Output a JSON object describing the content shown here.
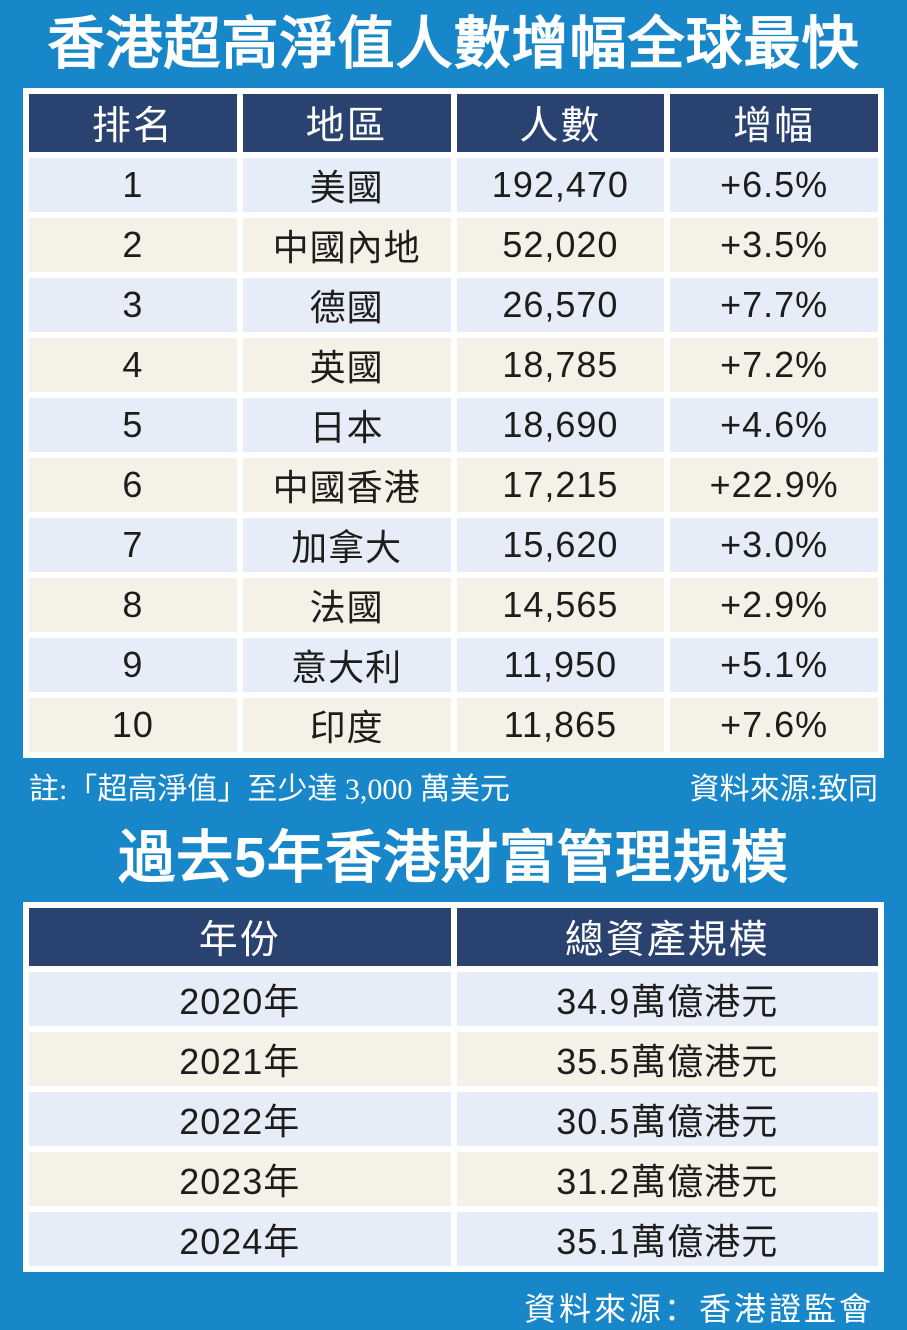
{
  "colors": {
    "page_background": "#1787c9",
    "header_navy": "#294270",
    "row_light_blue": "#e7edf8",
    "row_cream": "#f5f1e6",
    "grid_white": "#ffffff",
    "body_text": "#1d1d1b",
    "title_text": "#ffffff"
  },
  "table1": {
    "title": "香港超高淨值人數增幅全球最快",
    "headers": [
      "排名",
      "地區",
      "人數",
      "增幅"
    ],
    "rows": [
      [
        "1",
        "美國",
        "192,470",
        "+6.5%"
      ],
      [
        "2",
        "中國內地",
        "52,020",
        "+3.5%"
      ],
      [
        "3",
        "德國",
        "26,570",
        "+7.7%"
      ],
      [
        "4",
        "英國",
        "18,785",
        "+7.2%"
      ],
      [
        "5",
        "日本",
        "18,690",
        "+4.6%"
      ],
      [
        "6",
        "中國香港",
        "17,215",
        "+22.9%"
      ],
      [
        "7",
        "加拿大",
        "15,620",
        "+3.0%"
      ],
      [
        "8",
        "法國",
        "14,565",
        "+2.9%"
      ],
      [
        "9",
        "意大利",
        "11,950",
        "+5.1%"
      ],
      [
        "10",
        "印度",
        "11,865",
        "+7.6%"
      ]
    ],
    "note": "註:「超高淨值」至少達 3,000 萬美元",
    "source": "資料來源:致同"
  },
  "table2": {
    "title": "過去5年香港財富管理規模",
    "headers": [
      "年份",
      "總資產規模"
    ],
    "rows": [
      [
        "2020年",
        "34.9萬億港元"
      ],
      [
        "2021年",
        "35.5萬億港元"
      ],
      [
        "2022年",
        "30.5萬億港元"
      ],
      [
        "2023年",
        "31.2萬億港元"
      ],
      [
        "2024年",
        "35.1萬億港元"
      ]
    ],
    "source": "資料來源：香港證監會"
  },
  "chart_data": [
    {
      "type": "table",
      "title": "香港超高淨值人數增幅全球最快",
      "columns": [
        "排名",
        "地區",
        "人數",
        "增幅"
      ],
      "rows": [
        [
          1,
          "美國",
          192470,
          "+6.5%"
        ],
        [
          2,
          "中國內地",
          52020,
          "+3.5%"
        ],
        [
          3,
          "德國",
          26570,
          "+7.7%"
        ],
        [
          4,
          "英國",
          18785,
          "+7.2%"
        ],
        [
          5,
          "日本",
          18690,
          "+4.6%"
        ],
        [
          6,
          "中國香港",
          17215,
          "+22.9%"
        ],
        [
          7,
          "加拿大",
          15620,
          "+3.0%"
        ],
        [
          8,
          "法國",
          14565,
          "+2.9%"
        ],
        [
          9,
          "意大利",
          11950,
          "+5.1%"
        ],
        [
          10,
          "印度",
          11865,
          "+7.6%"
        ]
      ],
      "note": "註:「超高淨值」至少達 3,000 萬美元",
      "source": "資料來源:致同"
    },
    {
      "type": "table",
      "title": "過去5年香港財富管理規模",
      "columns": [
        "年份",
        "總資產規模"
      ],
      "rows": [
        [
          "2020年",
          "34.9萬億港元"
        ],
        [
          "2021年",
          "35.5萬億港元"
        ],
        [
          "2022年",
          "30.5萬億港元"
        ],
        [
          "2023年",
          "31.2萬億港元"
        ],
        [
          "2024年",
          "35.1萬億港元"
        ]
      ],
      "source": "資料來源：香港證監會"
    }
  ]
}
